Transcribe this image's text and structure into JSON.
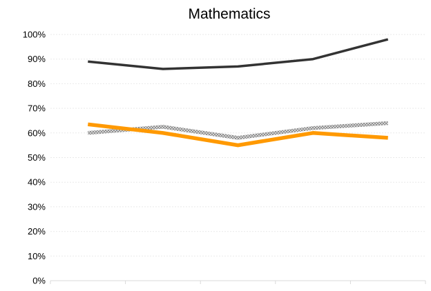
{
  "chart_data": {
    "type": "line",
    "title": "Mathematics",
    "xlabel": "",
    "ylabel": "",
    "ylim": [
      0,
      100
    ],
    "y_ticks": [
      "0%",
      "10%",
      "20%",
      "30%",
      "40%",
      "50%",
      "60%",
      "70%",
      "80%",
      "90%",
      "100%"
    ],
    "categories": [
      "",
      "",
      "",
      "",
      ""
    ],
    "grid": true,
    "legend": "none",
    "series": [
      {
        "color": "#333333",
        "style": "solid",
        "values": [
          89,
          86,
          87,
          90,
          98
        ]
      },
      {
        "color": "#BFBFBF",
        "style": "hatched",
        "values": [
          60,
          62.5,
          58,
          62,
          64
        ]
      },
      {
        "color": "#FF9900",
        "style": "solid",
        "values": [
          63.5,
          60,
          55,
          60,
          58
        ]
      }
    ]
  }
}
